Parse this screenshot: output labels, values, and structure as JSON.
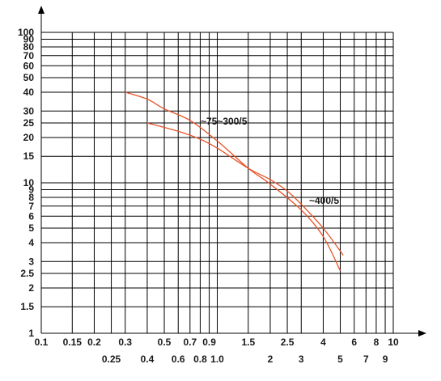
{
  "chart_data": {
    "type": "line",
    "title": "",
    "xlabel": "",
    "ylabel": "",
    "x_scale": "log",
    "y_scale": "log",
    "xlim": [
      0.1,
      10
    ],
    "ylim": [
      1,
      100
    ],
    "grid": true,
    "x_ticks_row1": [
      "0.1",
      "0.15",
      "0.2",
      "0.3",
      "0.5",
      "0.7",
      "0.9",
      "1.5",
      "2.5",
      "4",
      "6",
      "8",
      "10"
    ],
    "x_ticks_row2": [
      "0.25",
      "0.4",
      "0.6",
      "0.8",
      "1.0",
      "2",
      "3",
      "5",
      "7",
      "9"
    ],
    "y_ticks": [
      "1",
      "1.5",
      "2",
      "2.5",
      "3",
      "4",
      "5",
      "6",
      "7",
      "8",
      "9",
      "10",
      "15",
      "20",
      "25",
      "30",
      "40",
      "50",
      "60",
      "70",
      "80",
      "90",
      "100"
    ],
    "line_color": "#e8542a",
    "grid_color": "#000000",
    "annotations": [
      "~75~300/5",
      "~400/5"
    ],
    "series": [
      {
        "x": [
          0.3,
          0.4,
          0.5,
          0.7,
          1.0,
          1.5,
          2.0,
          3.0,
          4.0,
          5.0
        ],
        "y": [
          40,
          36,
          31,
          26,
          19,
          12.5,
          9.8,
          6.6,
          4.4,
          2.6
        ]
      },
      {
        "x": [
          0.4,
          0.6,
          0.8,
          1.0,
          1.5,
          2.0,
          2.5,
          3.0,
          4.0,
          5.2
        ],
        "y": [
          25,
          22,
          19.5,
          17,
          12.5,
          10.5,
          8.8,
          7.2,
          5.0,
          3.3
        ]
      }
    ]
  }
}
